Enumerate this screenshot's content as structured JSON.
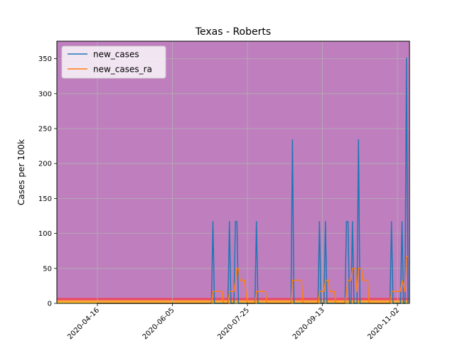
{
  "chart_data": {
    "type": "line",
    "title": "Texas - Roberts",
    "xlabel": "",
    "ylabel": "Cases per 100k",
    "ylim": [
      0,
      375
    ],
    "y_ticks": [
      0,
      50,
      100,
      150,
      200,
      250,
      300,
      350
    ],
    "x_ticks": [
      "2020-04-16",
      "2020-06-05",
      "2020-07-25",
      "2020-09-13",
      "2020-11-02"
    ],
    "x_range": [
      "2020-03-20",
      "2020-11-10"
    ],
    "grid": true,
    "legend_position": "top-left",
    "background_bands": [
      {
        "from": 0,
        "to": 1,
        "color": "#fde725"
      },
      {
        "from": 1,
        "to": 3,
        "color": "#fdb42f"
      },
      {
        "from": 3,
        "to": 5,
        "color": "#f9843f"
      },
      {
        "from": 5,
        "to": 8,
        "color": "#e4466b"
      },
      {
        "from": 8,
        "to": 375,
        "color": "#bf7fbf"
      }
    ],
    "series": [
      {
        "name": "new_cases",
        "color": "#1f77b4",
        "points": [
          [
            "2020-04-16",
            0
          ],
          [
            "2020-07-01",
            0
          ],
          [
            "2020-07-02",
            117
          ],
          [
            "2020-07-03",
            0
          ],
          [
            "2020-07-12",
            0
          ],
          [
            "2020-07-13",
            117
          ],
          [
            "2020-07-14",
            0
          ],
          [
            "2020-07-16",
            0
          ],
          [
            "2020-07-17",
            117
          ],
          [
            "2020-07-18",
            117
          ],
          [
            "2020-07-19",
            0
          ],
          [
            "2020-07-30",
            0
          ],
          [
            "2020-07-31",
            117
          ],
          [
            "2020-08-01",
            0
          ],
          [
            "2020-08-23",
            0
          ],
          [
            "2020-08-24",
            234
          ],
          [
            "2020-08-25",
            0
          ],
          [
            "2020-09-10",
            0
          ],
          [
            "2020-09-11",
            117
          ],
          [
            "2020-09-12",
            0
          ],
          [
            "2020-09-14",
            0
          ],
          [
            "2020-09-15",
            117
          ],
          [
            "2020-09-16",
            0
          ],
          [
            "2020-09-28",
            0
          ],
          [
            "2020-09-29",
            117
          ],
          [
            "2020-09-30",
            117
          ],
          [
            "2020-10-01",
            0
          ],
          [
            "2020-10-02",
            0
          ],
          [
            "2020-10-03",
            117
          ],
          [
            "2020-10-04",
            0
          ],
          [
            "2020-10-06",
            0
          ],
          [
            "2020-10-07",
            234
          ],
          [
            "2020-10-08",
            0
          ],
          [
            "2020-10-28",
            0
          ],
          [
            "2020-10-29",
            117
          ],
          [
            "2020-10-30",
            0
          ],
          [
            "2020-11-04",
            0
          ],
          [
            "2020-11-05",
            117
          ],
          [
            "2020-11-06",
            0
          ],
          [
            "2020-11-07",
            0
          ],
          [
            "2020-11-08",
            351
          ],
          [
            "2020-11-09",
            0
          ]
        ]
      },
      {
        "name": "new_cases_ra",
        "color": "#ff7f0e",
        "points": [
          [
            "2020-04-16",
            0
          ],
          [
            "2020-07-01",
            0
          ],
          [
            "2020-07-02",
            17
          ],
          [
            "2020-07-08",
            17
          ],
          [
            "2020-07-09",
            0
          ],
          [
            "2020-07-12",
            0
          ],
          [
            "2020-07-13",
            17
          ],
          [
            "2020-07-16",
            17
          ],
          [
            "2020-07-17",
            33
          ],
          [
            "2020-07-18",
            50
          ],
          [
            "2020-07-19",
            50
          ],
          [
            "2020-07-20",
            33
          ],
          [
            "2020-07-23",
            33
          ],
          [
            "2020-07-24",
            17
          ],
          [
            "2020-07-25",
            0
          ],
          [
            "2020-07-30",
            0
          ],
          [
            "2020-07-31",
            17
          ],
          [
            "2020-08-06",
            17
          ],
          [
            "2020-08-07",
            0
          ],
          [
            "2020-08-23",
            0
          ],
          [
            "2020-08-24",
            33
          ],
          [
            "2020-08-30",
            33
          ],
          [
            "2020-08-31",
            0
          ],
          [
            "2020-09-10",
            0
          ],
          [
            "2020-09-11",
            17
          ],
          [
            "2020-09-14",
            17
          ],
          [
            "2020-09-15",
            33
          ],
          [
            "2020-09-17",
            33
          ],
          [
            "2020-09-18",
            17
          ],
          [
            "2020-09-21",
            17
          ],
          [
            "2020-09-22",
            0
          ],
          [
            "2020-09-28",
            0
          ],
          [
            "2020-09-29",
            17
          ],
          [
            "2020-09-30",
            33
          ],
          [
            "2020-10-02",
            33
          ],
          [
            "2020-10-03",
            50
          ],
          [
            "2020-10-05",
            50
          ],
          [
            "2020-10-06",
            17
          ],
          [
            "2020-10-07",
            50
          ],
          [
            "2020-10-09",
            50
          ],
          [
            "2020-10-10",
            33
          ],
          [
            "2020-10-13",
            33
          ],
          [
            "2020-10-14",
            0
          ],
          [
            "2020-10-28",
            0
          ],
          [
            "2020-10-29",
            17
          ],
          [
            "2020-11-04",
            17
          ],
          [
            "2020-11-05",
            33
          ],
          [
            "2020-11-07",
            17
          ],
          [
            "2020-11-08",
            67
          ],
          [
            "2020-11-09",
            67
          ]
        ]
      }
    ]
  }
}
